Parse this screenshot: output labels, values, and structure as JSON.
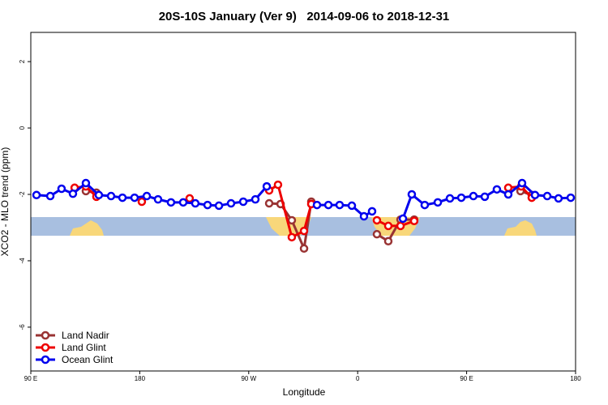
{
  "chart_data": {
    "type": "line",
    "title": "20S-10S January (Ver 9)   2014-09-06 to 2018-12-31",
    "x_label": "Longitude",
    "y_label": "XCO2 - MLO trend (ppm)",
    "xlim": [
      90,
      540
    ],
    "xticks": [
      {
        "value": 90,
        "label": "90 E"
      },
      180,
      {
        "value": 270,
        "label": "90 W"
      },
      {
        "value": 360,
        "label": "0"
      },
      {
        "value": 450,
        "label": "90 E"
      },
      {
        "value": 540,
        "label": "180"
      }
    ],
    "ylim": [
      -7.32,
      2.88
    ],
    "yticks": [
      2,
      0,
      -2,
      -4,
      -6
    ],
    "legend": "bottom-left",
    "series": [
      {
        "name": "Land Nadir",
        "color": "#993333",
        "x": [
          135.5,
          144.2,
          null,
          286.9,
          296.3,
          305.6,
          315.7,
          321.7,
          null,
          375.9,
          385.3,
          395.4,
          406.7,
          null,
          494.5,
          503.8
        ],
        "values": [
          -1.9,
          -1.95,
          null,
          -2.27,
          -2.29,
          -2.78,
          -3.63,
          -2.22,
          null,
          -3.2,
          -3.41,
          -2.76,
          -2.76,
          null,
          -1.9,
          -2.02
        ]
      },
      {
        "name": "Land Glint",
        "color": "#ee0000",
        "x": [
          126.2,
          135.5,
          144.2,
          null,
          181.7,
          null,
          221.2,
          null,
          286.9,
          294.2,
          305.6,
          315.7,
          321.7,
          null,
          375.9,
          385.3,
          395.4,
          406.7,
          null,
          484.4,
          495.1,
          503.8
        ],
        "values": [
          -1.8,
          -1.76,
          -2.07,
          null,
          -2.22,
          null,
          -2.12,
          null,
          -1.88,
          -1.71,
          -3.29,
          -3.1,
          -2.29,
          null,
          -2.78,
          -2.95,
          -2.95,
          -2.8,
          null,
          -1.8,
          -1.76,
          -2.1
        ]
      },
      {
        "name": "Ocean Glint",
        "color": "#0000ee",
        "x": [
          94.7,
          106.1,
          115.4,
          124.8,
          135.5,
          146.2,
          156.3,
          165.7,
          175.7,
          185.8,
          195.1,
          205.8,
          215.9,
          225.9,
          236.0,
          245.4,
          255.4,
          265.5,
          275.5,
          284.9,
          null,
          326.4,
          335.8,
          345.1,
          355.2,
          365.2,
          371.9,
          null,
          397.4,
          404.7,
          415.4,
          426.2,
          436.2,
          445.6,
          455.6,
          465.0,
          475.0,
          484.4,
          495.8,
          506.5,
          516.6,
          525.9,
          536.0
        ],
        "values": [
          -2.02,
          -2.05,
          -1.83,
          -1.98,
          -1.66,
          -2.02,
          -2.05,
          -2.1,
          -2.1,
          -2.05,
          -2.15,
          -2.24,
          -2.24,
          -2.27,
          -2.32,
          -2.34,
          -2.27,
          -2.22,
          -2.15,
          -1.76,
          null,
          -2.32,
          -2.32,
          -2.32,
          -2.34,
          -2.66,
          -2.51,
          null,
          -2.73,
          -2.0,
          -2.32,
          -2.24,
          -2.12,
          -2.1,
          -2.05,
          -2.07,
          -1.85,
          -2.0,
          -1.66,
          -2.02,
          -2.05,
          -2.12,
          -2.1
        ]
      }
    ]
  }
}
